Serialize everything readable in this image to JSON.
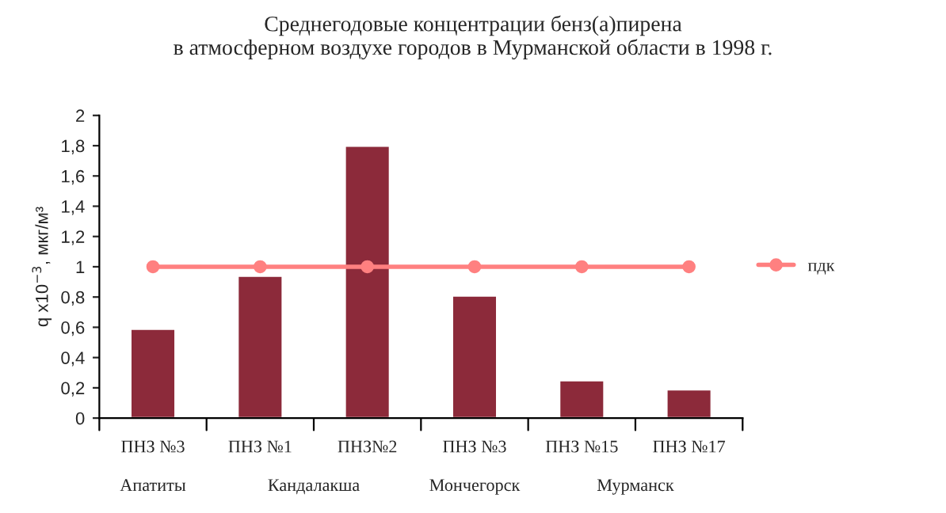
{
  "chart_data": {
    "type": "bar",
    "title": "Среднегодовые концентрации бенз(а)пирена\nв атмосферном воздухе городов в Мурманской области в 1998 г.",
    "ylabel": "q x10$^{−3}$, мкг/м³",
    "categories": [
      "ПНЗ №3",
      "ПНЗ №1",
      "ПНЗ№2",
      "ПНЗ №3",
      "ПНЗ №15",
      "ПНЗ №17"
    ],
    "series": [
      {
        "color": "#8c2a3a",
        "values": [
          0.59,
          0.94,
          1.8,
          0.81,
          0.25,
          0.19
        ]
      },
      {
        "type": "line",
        "name": "пдк",
        "color": "#ff8080",
        "marker": "circle",
        "values": [
          1,
          1,
          1,
          1,
          1,
          1
        ]
      }
    ],
    "annotations": [
      "Апатиты",
      "Кандалакша",
      "Мончегорск",
      "Мурманск"
    ],
    "ylim": [
      0,
      2
    ],
    "yticks": [
      0,
      {
        "value": 0.2,
        "label": "0,2"
      },
      {
        "value": 0.4,
        "label": "0,4"
      },
      {
        "value": 0.6,
        "label": "0,6"
      },
      {
        "value": 0.8,
        "label": "0,8"
      },
      1,
      {
        "value": 1.2,
        "label": "1,2"
      },
      {
        "value": 1.4,
        "label": "1,4"
      },
      {
        "value": 1.6,
        "label": "1,6"
      },
      {
        "value": 1.8,
        "label": "1,8"
      },
      2
    ],
    "grid": false,
    "legend": "right"
  }
}
